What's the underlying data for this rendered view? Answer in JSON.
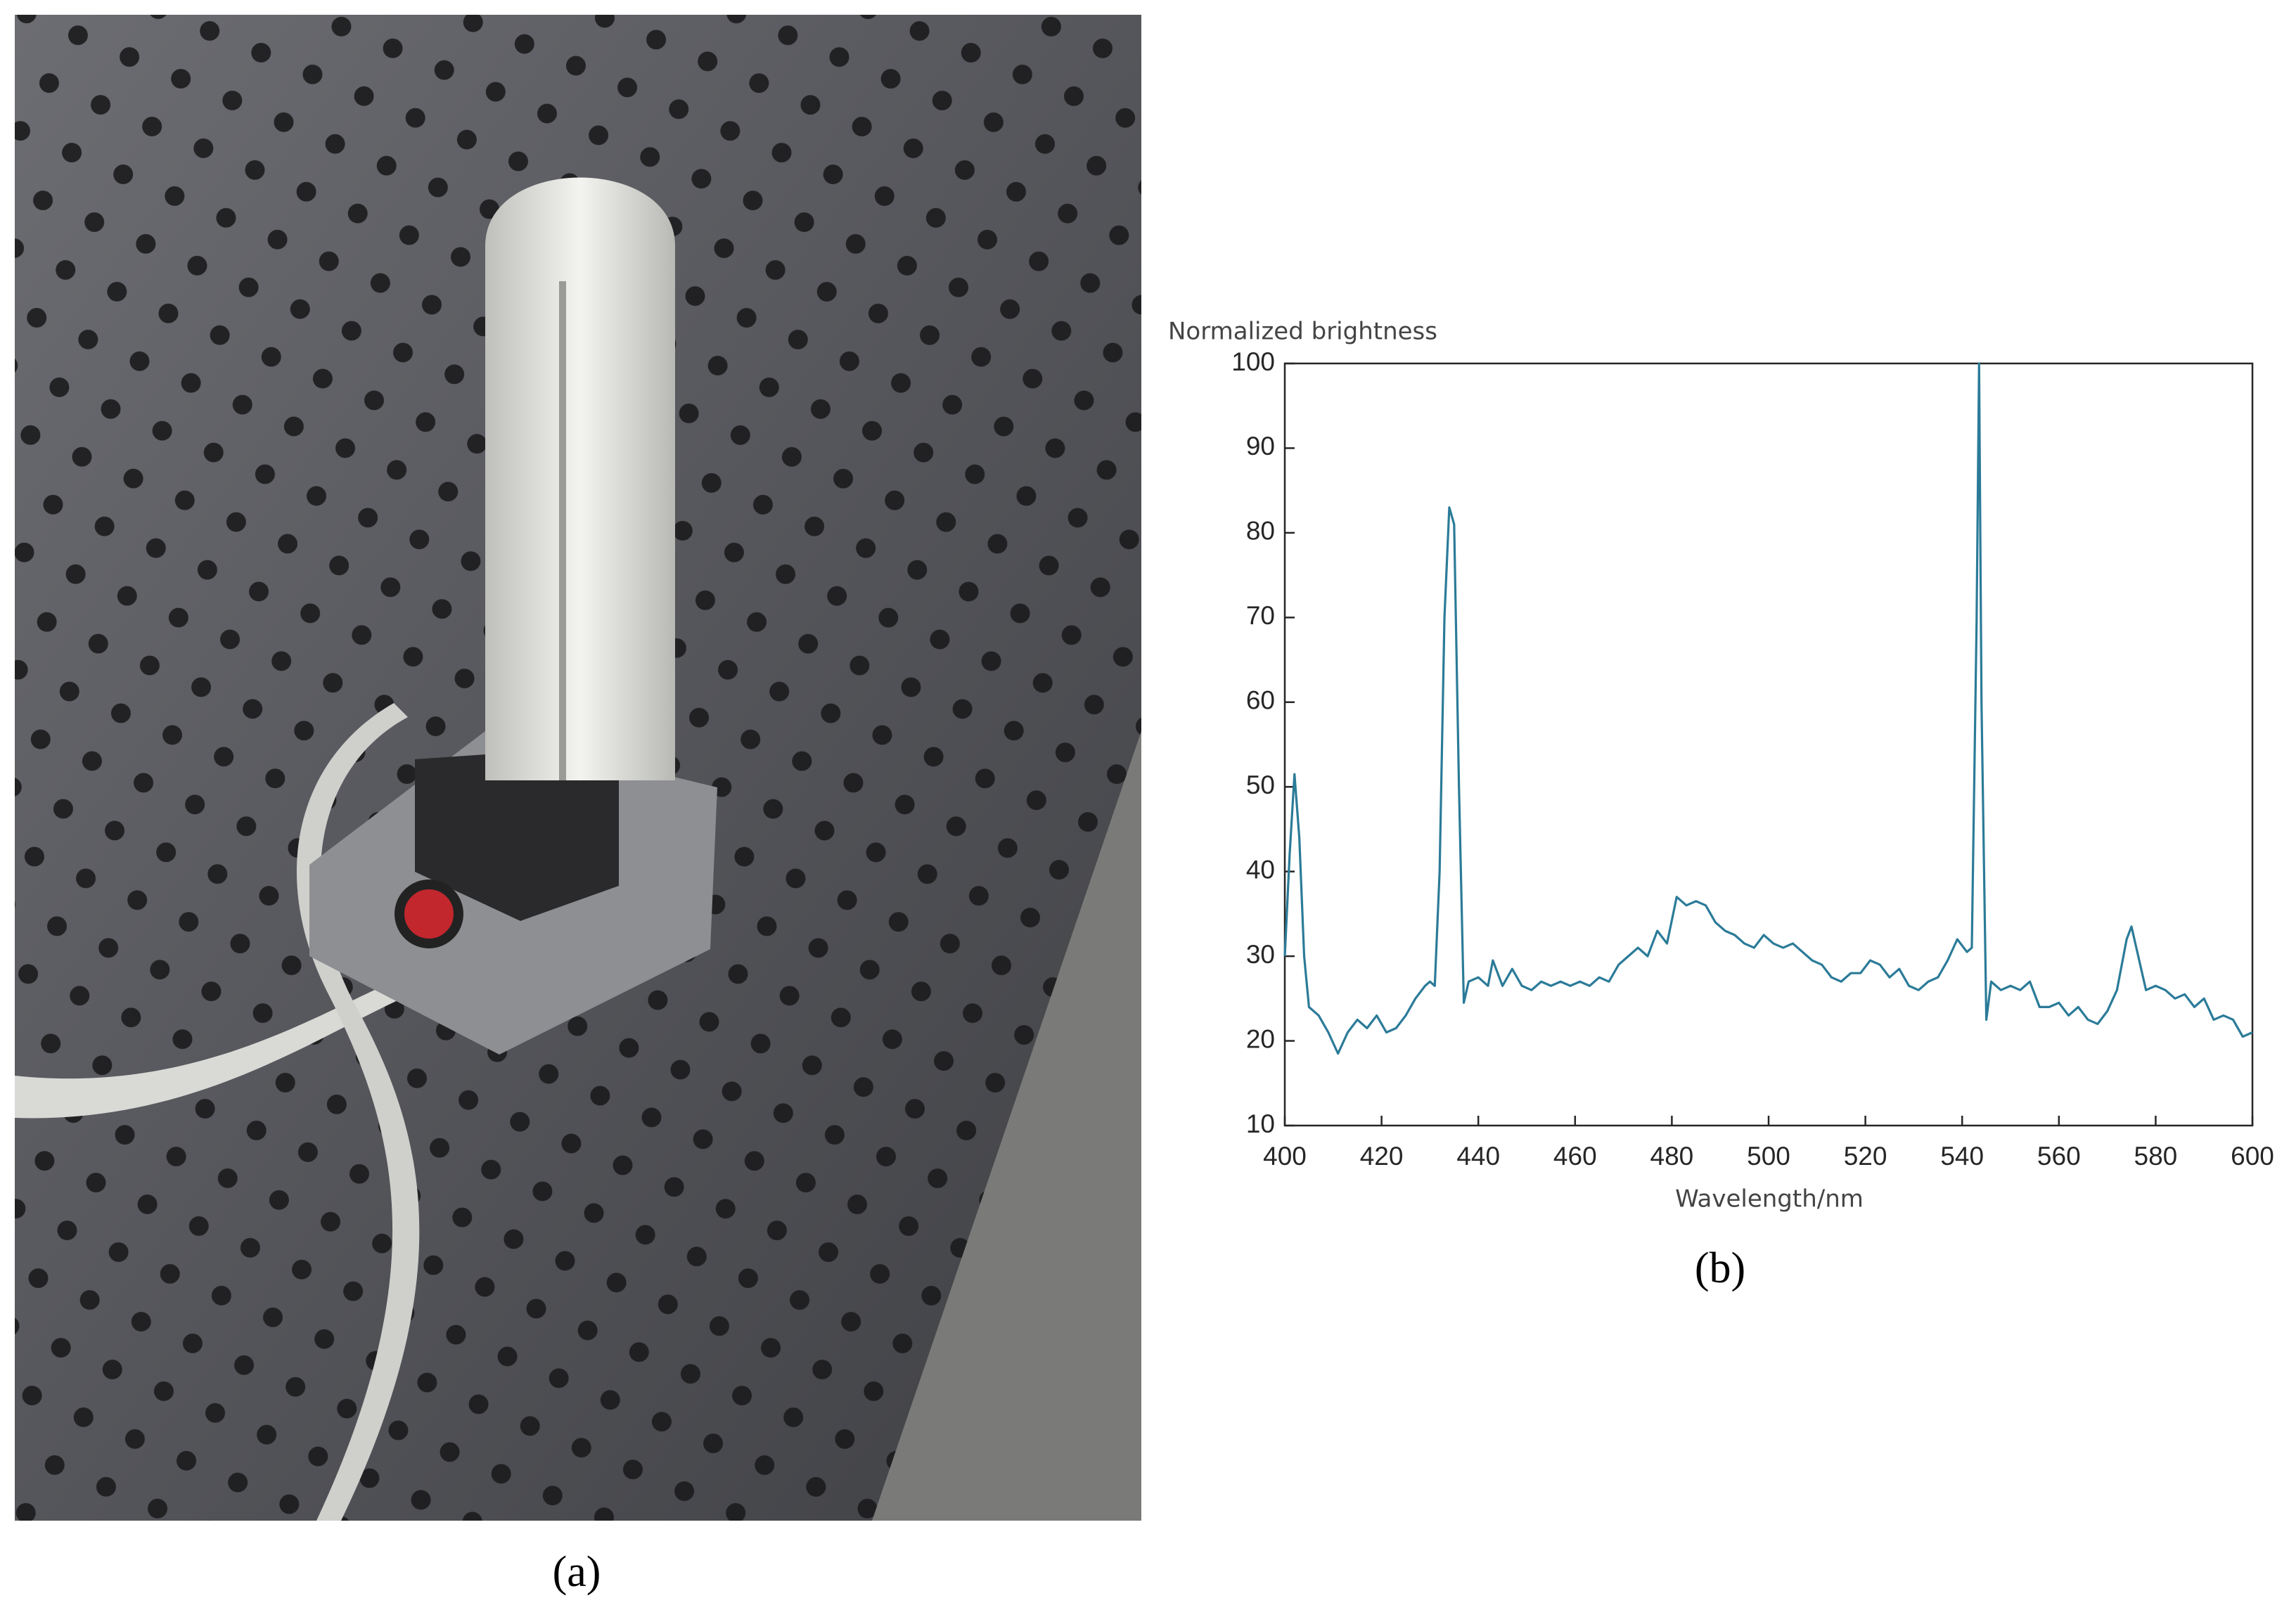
{
  "panel_labels": [
    "(a)",
    "(b)"
  ],
  "chart_data": {
    "type": "line",
    "y_label": "Normalized brightness",
    "x_label": "Wavelength/nm",
    "x": [
      400,
      401,
      402,
      403,
      404,
      405,
      407,
      409,
      411,
      413,
      415,
      417,
      419,
      421,
      423,
      425,
      427,
      429,
      430,
      431,
      432,
      433,
      434,
      435,
      436,
      437,
      438,
      440,
      442,
      443,
      445,
      447,
      449,
      451,
      453,
      455,
      457,
      459,
      461,
      463,
      465,
      467,
      469,
      471,
      473,
      475,
      477,
      479,
      481,
      483,
      485,
      487,
      489,
      491,
      493,
      495,
      497,
      499,
      501,
      503,
      505,
      507,
      509,
      511,
      513,
      515,
      517,
      519,
      521,
      523,
      525,
      527,
      529,
      531,
      533,
      535,
      537,
      539,
      541,
      542,
      543,
      543.5,
      544,
      545,
      546,
      548,
      550,
      552,
      554,
      556,
      558,
      560,
      562,
      564,
      566,
      568,
      570,
      572,
      574,
      575,
      576,
      578,
      580,
      582,
      584,
      586,
      588,
      590,
      592,
      594,
      596,
      598,
      600
    ],
    "series": [
      {
        "color": "#2b7b98",
        "values": [
          30,
          42,
          51.5,
          44,
          30,
          24,
          23,
          21,
          18.5,
          21,
          22.5,
          21.5,
          23,
          21,
          21.5,
          23,
          25,
          26.5,
          27,
          26.5,
          40,
          70,
          83,
          81,
          50,
          24.5,
          27,
          27.5,
          26.5,
          29.5,
          26.5,
          28.5,
          26.5,
          26,
          27,
          26.5,
          27,
          26.5,
          27,
          26.5,
          27.5,
          27,
          29,
          30,
          31,
          30,
          33,
          31.5,
          37,
          36,
          36.5,
          36,
          34,
          33,
          32.5,
          31.5,
          31,
          32.5,
          31.5,
          31,
          31.5,
          30.5,
          29.5,
          29,
          27.5,
          27,
          28,
          28,
          29.5,
          29,
          27.5,
          28.5,
          26.5,
          26,
          27,
          27.5,
          29.5,
          32,
          30.5,
          31,
          70,
          100,
          60,
          22.5,
          27,
          26,
          26.5,
          26,
          27,
          24,
          24,
          24.5,
          23,
          24,
          22.5,
          22,
          23.5,
          26,
          32,
          33.5,
          31,
          26,
          26.5,
          26,
          25,
          25.5,
          24,
          25,
          22.5,
          23,
          22.5,
          20.5,
          21
        ]
      }
    ],
    "xlim": [
      400,
      600
    ],
    "ylim": [
      10,
      100
    ],
    "xticks": [
      400,
      420,
      440,
      460,
      480,
      500,
      520,
      540,
      560,
      580,
      600
    ],
    "yticks": [
      10,
      20,
      30,
      40,
      50,
      60,
      70,
      80,
      90,
      100
    ],
    "grid": false
  }
}
